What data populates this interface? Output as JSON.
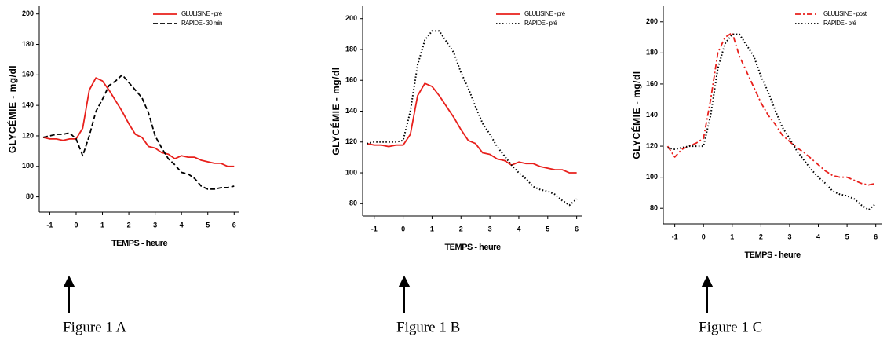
{
  "chart_data": [
    {
      "type": "line",
      "caption": "Figure 1 A",
      "xlabel": "TEMPS - heure",
      "ylabel": "GLYCÉMIE - mg/dl",
      "x": [
        -1.25,
        -1,
        -0.75,
        -0.5,
        -0.25,
        0,
        0.25,
        0.5,
        0.75,
        1,
        1.25,
        1.5,
        1.75,
        2,
        2.25,
        2.5,
        2.75,
        3,
        3.25,
        3.5,
        3.75,
        4,
        4.25,
        4.5,
        4.75,
        5,
        5.25,
        5.5,
        5.75,
        6
      ],
      "series": [
        {
          "name": "GLULISINE - pré",
          "color": "#e8201c",
          "dash": "solid",
          "values": [
            119,
            118,
            118,
            117,
            118,
            118,
            125,
            150,
            158,
            156,
            150,
            143,
            136,
            128,
            121,
            119,
            113,
            112,
            109,
            108,
            105,
            107,
            106,
            106,
            104,
            103,
            102,
            102,
            100,
            100
          ]
        },
        {
          "name": "RAPIDE - 30 min",
          "color": "#000000",
          "dash": "dashed",
          "values": [
            119,
            120,
            121,
            121,
            122,
            118,
            107,
            120,
            136,
            144,
            153,
            156,
            160,
            155,
            150,
            145,
            135,
            120,
            112,
            105,
            101,
            96,
            95,
            92,
            87,
            85,
            85,
            86,
            86,
            87
          ]
        }
      ],
      "xlim": [
        -1.4,
        6.2
      ],
      "ylim": [
        70,
        205
      ],
      "xticks": [
        -1,
        0,
        1,
        2,
        3,
        4,
        5,
        6
      ],
      "yticks": [
        80,
        100,
        120,
        140,
        160,
        180,
        200
      ],
      "legend": "upper right"
    },
    {
      "type": "line",
      "caption": "Figure 1 B",
      "xlabel": "TEMPS - heure",
      "ylabel": "GLYCÉMIE - mg/dl",
      "x": [
        -1.25,
        -1,
        -0.75,
        -0.5,
        -0.25,
        0,
        0.25,
        0.5,
        0.75,
        1,
        1.25,
        1.5,
        1.75,
        2,
        2.25,
        2.5,
        2.75,
        3,
        3.25,
        3.5,
        3.75,
        4,
        4.25,
        4.5,
        4.75,
        5,
        5.25,
        5.5,
        5.75,
        6
      ],
      "series": [
        {
          "name": "GLULISINE - pré",
          "color": "#e8201c",
          "dash": "solid",
          "values": [
            119,
            118,
            118,
            117,
            118,
            118,
            125,
            150,
            158,
            156,
            150,
            143,
            136,
            128,
            121,
            119,
            113,
            112,
            109,
            108,
            105,
            107,
            106,
            106,
            104,
            103,
            102,
            102,
            100,
            100
          ]
        },
        {
          "name": "RAPIDE - pré",
          "color": "#000000",
          "dash": "dotted",
          "values": [
            119,
            120,
            120,
            120,
            120,
            121,
            140,
            170,
            186,
            192,
            192,
            185,
            178,
            165,
            155,
            143,
            132,
            125,
            117,
            111,
            105,
            100,
            96,
            91,
            89,
            88,
            86,
            82,
            79,
            83
          ]
        }
      ],
      "xlim": [
        -1.4,
        6.2
      ],
      "ylim": [
        72,
        208
      ],
      "xticks": [
        -1,
        0,
        1,
        2,
        3,
        4,
        5,
        6
      ],
      "yticks": [
        80,
        100,
        120,
        140,
        160,
        180,
        200
      ],
      "legend": "upper right"
    },
    {
      "type": "line",
      "caption": "Figure 1 C",
      "xlabel": "TEMPS - heure",
      "ylabel": "GLYCÉMIE - mg/dl",
      "x": [
        -1.25,
        -1,
        -0.75,
        -0.5,
        -0.25,
        0,
        0.25,
        0.5,
        0.75,
        1,
        1.25,
        1.5,
        1.75,
        2,
        2.25,
        2.5,
        2.75,
        3,
        3.25,
        3.5,
        3.75,
        4,
        4.25,
        4.5,
        4.75,
        5,
        5.25,
        5.5,
        5.75,
        6
      ],
      "series": [
        {
          "name": "GLULISINE - post",
          "color": "#e8201c",
          "dash": "dashdot",
          "values": [
            120,
            113,
            118,
            120,
            122,
            125,
            150,
            180,
            190,
            193,
            178,
            168,
            158,
            148,
            140,
            134,
            127,
            123,
            119,
            116,
            112,
            108,
            104,
            101,
            100,
            100,
            98,
            96,
            95,
            96
          ]
        },
        {
          "name": "RAPIDE - pré",
          "color": "#000000",
          "dash": "dotted",
          "values": [
            119,
            118,
            119,
            120,
            120,
            120,
            140,
            170,
            186,
            192,
            192,
            185,
            178,
            165,
            155,
            143,
            132,
            125,
            117,
            111,
            105,
            100,
            96,
            91,
            89,
            88,
            86,
            82,
            79,
            83
          ]
        }
      ],
      "xlim": [
        -1.4,
        6.2
      ],
      "ylim": [
        70,
        210
      ],
      "xticks": [
        -1,
        0,
        1,
        2,
        3,
        4,
        5,
        6
      ],
      "yticks": [
        80,
        100,
        120,
        140,
        160,
        180,
        200
      ],
      "legend": "upper right"
    }
  ]
}
